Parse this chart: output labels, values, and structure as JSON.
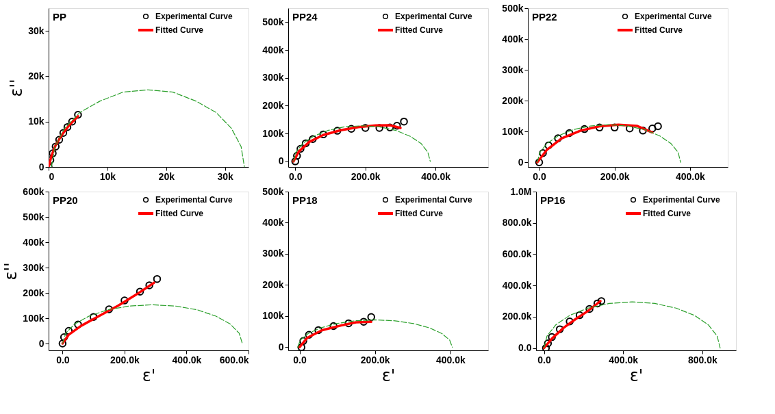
{
  "chart_data": [
    {
      "type": "scatter",
      "title": "PP",
      "ylabel": "ε''",
      "legend": "top right",
      "xlim": [
        0,
        34000
      ],
      "ylim": [
        0,
        35000
      ],
      "xticks": [
        {
          "value": 0,
          "label": "0"
        },
        {
          "value": 10000,
          "label": "10k"
        },
        {
          "value": 20000,
          "label": "20k"
        },
        {
          "value": 30000,
          "label": "30k"
        }
      ],
      "yticks": [
        {
          "value": 0,
          "label": "0"
        },
        {
          "value": 10000,
          "label": "10k"
        },
        {
          "value": 20000,
          "label": "20k"
        },
        {
          "value": 30000,
          "label": "30k"
        }
      ],
      "series": [
        {
          "name": "Experimental Curve",
          "type": "scatter",
          "marker": "circle",
          "color": "#000000",
          "x": [
            0,
            300,
            700,
            1200,
            1800,
            2500,
            3200,
            4000,
            5000
          ],
          "values": [
            0,
            1500,
            3000,
            4500,
            6000,
            7500,
            8800,
            10000,
            11500
          ]
        },
        {
          "name": "Fitted Curve",
          "type": "line",
          "color": "#ff0000",
          "x": [
            0,
            500,
            1200,
            2200,
            3500,
            5000
          ],
          "values": [
            0,
            2500,
            4800,
            7000,
            9200,
            11200
          ]
        },
        {
          "type": "line",
          "line_style": "dashed",
          "color": "#2ca02c",
          "x": [
            500,
            1060,
            2700,
            5300,
            8700,
            12650,
            16900,
            21150,
            25100,
            28500,
            31100,
            32740,
            33300
          ],
          "values": [
            0,
            4500,
            8500,
            12000,
            14500,
            16500,
            17000,
            16500,
            14500,
            12000,
            8500,
            4500,
            0
          ]
        }
      ]
    },
    {
      "type": "scatter",
      "title": "PP24",
      "legend": "top right",
      "xlim": [
        -20000,
        550000
      ],
      "ylim": [
        -20000,
        550000
      ],
      "xticks": [
        {
          "value": 0,
          "label": "0.0"
        },
        {
          "value": 200000,
          "label": "200.0k"
        },
        {
          "value": 400000,
          "label": "400.0k"
        }
      ],
      "yticks": [
        {
          "value": 0,
          "label": "0"
        },
        {
          "value": 100000,
          "label": "100k"
        },
        {
          "value": 200000,
          "label": "200k"
        },
        {
          "value": 300000,
          "label": "300k"
        },
        {
          "value": 400000,
          "label": "400k"
        },
        {
          "value": 500000,
          "label": "500k"
        }
      ],
      "series": [
        {
          "name": "Experimental Curve",
          "type": "scatter",
          "marker": "circle",
          "color": "#000000",
          "x": [
            0,
            5000,
            15000,
            30000,
            50000,
            80000,
            120000,
            160000,
            200000,
            240000,
            270000,
            290000,
            310000
          ],
          "values": [
            0,
            20000,
            45000,
            65000,
            80000,
            97000,
            110000,
            117000,
            120000,
            120000,
            122000,
            128000,
            143000
          ]
        },
        {
          "name": "Fitted Curve",
          "type": "line",
          "color": "#ff0000",
          "x": [
            -5000,
            10000,
            40000,
            80000,
            130000,
            180000,
            230000,
            270000,
            300000
          ],
          "values": [
            0,
            35000,
            70000,
            95000,
            112000,
            123000,
            129000,
            130000,
            120000
          ]
        },
        {
          "type": "line",
          "line_style": "dashed",
          "color": "#2ca02c",
          "x": [
            -5000,
            2000,
            21000,
            52000,
            92500,
            139500,
            190000,
            240500,
            287500,
            328000,
            359000,
            378000,
            385000
          ],
          "values": [
            0,
            33000,
            64000,
            90000,
            111000,
            124000,
            128000,
            124000,
            111000,
            90000,
            64000,
            33000,
            0
          ]
        }
      ]
    },
    {
      "type": "scatter",
      "title": "PP22",
      "legend": "top right",
      "xlim": [
        -30000,
        500000
      ],
      "ylim": [
        -15000,
        500000
      ],
      "xticks": [
        {
          "value": 0,
          "label": "0.0"
        },
        {
          "value": 200000,
          "label": "200.0k"
        },
        {
          "value": 400000,
          "label": "400.0k"
        }
      ],
      "yticks": [
        {
          "value": 0,
          "label": "0"
        },
        {
          "value": 100000,
          "label": "100k"
        },
        {
          "value": 200000,
          "label": "200k"
        },
        {
          "value": 300000,
          "label": "300k"
        },
        {
          "value": 400000,
          "label": "400k"
        },
        {
          "value": 500000,
          "label": "500k"
        }
      ],
      "series": [
        {
          "name": "Experimental Curve",
          "type": "scatter",
          "marker": "circle",
          "color": "#000000",
          "x": [
            0,
            10000,
            25000,
            50000,
            80000,
            120000,
            160000,
            200000,
            240000,
            275000,
            300000,
            315000
          ],
          "values": [
            0,
            30000,
            55000,
            78000,
            95000,
            108000,
            113000,
            113000,
            110000,
            103000,
            110000,
            117000
          ]
        },
        {
          "name": "Fitted Curve",
          "type": "line",
          "color": "#ff0000",
          "x": [
            -5000,
            20000,
            60000,
            110000,
            160000,
            210000,
            260000,
            300000
          ],
          "values": [
            0,
            40000,
            78000,
            103000,
            117000,
            122000,
            118000,
            97000
          ]
        },
        {
          "type": "line",
          "line_style": "dashed",
          "color": "#2ca02c",
          "x": [
            -5000,
            1500,
            20500,
            50500,
            90000,
            136000,
            185000,
            234000,
            280000,
            319500,
            349500,
            368500,
            375000
          ],
          "values": [
            0,
            32000,
            61000,
            86000,
            106000,
            118000,
            122000,
            118000,
            106000,
            86000,
            61000,
            32000,
            0
          ]
        }
      ]
    },
    {
      "type": "scatter",
      "title": "PP20",
      "xlabel": "ε'",
      "ylabel": "ε''",
      "legend": "top right",
      "xlim": [
        -45000,
        600000
      ],
      "ylim": [
        -27000,
        600000
      ],
      "xticks": [
        {
          "value": 0,
          "label": "0.0"
        },
        {
          "value": 200000,
          "label": "200.0k"
        },
        {
          "value": 400000,
          "label": "400.0k"
        },
        {
          "value": 600000,
          "label": "600.0k"
        }
      ],
      "yticks": [
        {
          "value": 0,
          "label": "0"
        },
        {
          "value": 100000,
          "label": "100k"
        },
        {
          "value": 200000,
          "label": "200k"
        },
        {
          "value": 300000,
          "label": "300k"
        },
        {
          "value": 400000,
          "label": "400k"
        },
        {
          "value": 500000,
          "label": "500k"
        },
        {
          "value": 600000,
          "label": "600k"
        }
      ],
      "series": [
        {
          "name": "Experimental Curve",
          "type": "scatter",
          "marker": "circle",
          "color": "#000000",
          "x": [
            0,
            5000,
            20000,
            50000,
            100000,
            150000,
            200000,
            250000,
            280000,
            305000
          ],
          "values": [
            0,
            25000,
            50000,
            75000,
            105000,
            135000,
            170000,
            205000,
            230000,
            255000
          ]
        },
        {
          "name": "Fitted Curve",
          "type": "line",
          "color": "#ff0000",
          "x": [
            0,
            20000,
            60000,
            120000,
            180000,
            240000,
            295000
          ],
          "values": [
            0,
            35000,
            70000,
            110000,
            150000,
            195000,
            240000
          ]
        },
        {
          "type": "line",
          "line_style": "dashed",
          "color": "#2ca02c",
          "x": [
            0,
            9900,
            38900,
            85000,
            145000,
            214900,
            290000,
            365100,
            435000,
            495000,
            541100,
            570100,
            580000
          ],
          "values": [
            0,
            40000,
            77000,
            108000,
            133000,
            148000,
            153000,
            148000,
            133000,
            108000,
            77000,
            40000,
            0
          ]
        }
      ]
    },
    {
      "type": "scatter",
      "title": "PP18",
      "xlabel": "ε'",
      "legend": "top right",
      "xlim": [
        -30000,
        500000
      ],
      "ylim": [
        -10000,
        500000
      ],
      "xticks": [
        {
          "value": 0,
          "label": "0.0"
        },
        {
          "value": 200000,
          "label": "200.0k"
        },
        {
          "value": 400000,
          "label": "400.0k"
        }
      ],
      "yticks": [
        {
          "value": 0,
          "label": "0"
        },
        {
          "value": 100000,
          "label": "100k"
        },
        {
          "value": 200000,
          "label": "200k"
        },
        {
          "value": 300000,
          "label": "300k"
        },
        {
          "value": 400000,
          "label": "400k"
        },
        {
          "value": 500000,
          "label": "500k"
        }
      ],
      "series": [
        {
          "name": "Experimental Curve",
          "type": "scatter",
          "marker": "circle",
          "color": "#000000",
          "x": [
            5000,
            10000,
            25000,
            50000,
            90000,
            130000,
            170000,
            190000
          ],
          "values": [
            0,
            20000,
            40000,
            55000,
            68000,
            77000,
            82000,
            97000
          ]
        },
        {
          "name": "Fitted Curve",
          "type": "line",
          "color": "#ff0000",
          "x": [
            0,
            20000,
            60000,
            110000,
            150000,
            190000
          ],
          "values": [
            0,
            30000,
            55000,
            70000,
            80000,
            82000
          ]
        },
        {
          "type": "line",
          "line_style": "dashed",
          "color": "#2ca02c",
          "x": [
            -5000,
            2000,
            22500,
            55000,
            97500,
            147000,
            200000,
            253000,
            302500,
            345000,
            377500,
            398000,
            405000
          ],
          "values": [
            0,
            23000,
            44000,
            62000,
            76000,
            85000,
            88000,
            85000,
            76000,
            62000,
            44000,
            23000,
            0
          ]
        }
      ]
    },
    {
      "type": "scatter",
      "title": "PP16",
      "xlabel": "ε'",
      "legend": "top right",
      "xlim": [
        -40000,
        970000
      ],
      "ylim": [
        -15000,
        1000000
      ],
      "xticks": [
        {
          "value": 0,
          "label": "0.0"
        },
        {
          "value": 400000,
          "label": "400.0k"
        },
        {
          "value": 800000,
          "label": "800.0k"
        }
      ],
      "yticks": [
        {
          "value": 0,
          "label": "0.0"
        },
        {
          "value": 200000,
          "label": "200.0k"
        },
        {
          "value": 400000,
          "label": "400.0k"
        },
        {
          "value": 600000,
          "label": "600.0k"
        },
        {
          "value": 800000,
          "label": "800.0k"
        },
        {
          "value": 1000000,
          "label": "1.0M"
        }
      ],
      "series": [
        {
          "name": "Experimental Curve",
          "type": "scatter",
          "marker": "circle",
          "color": "#000000",
          "x": [
            10000,
            20000,
            40000,
            80000,
            130000,
            180000,
            230000,
            270000,
            290000
          ],
          "values": [
            0,
            30000,
            70000,
            120000,
            170000,
            210000,
            250000,
            285000,
            300000
          ]
        },
        {
          "name": "Fitted Curve",
          "type": "line",
          "color": "#ff0000",
          "x": [
            0,
            40000,
            100000,
            160000,
            220000,
            285000
          ],
          "values": [
            0,
            60000,
            130000,
            185000,
            235000,
            300000
          ]
        },
        {
          "type": "line",
          "line_style": "dashed",
          "color": "#2ca02c",
          "x": [
            0,
            15000,
            59600,
            130400,
            222500,
            329700,
            445000,
            560300,
            667500,
            759600,
            830400,
            875000,
            890000
          ],
          "values": [
            0,
            76000,
            148000,
            209000,
            255000,
            285000,
            295000,
            285000,
            255000,
            209000,
            148000,
            76000,
            0
          ]
        }
      ]
    }
  ]
}
